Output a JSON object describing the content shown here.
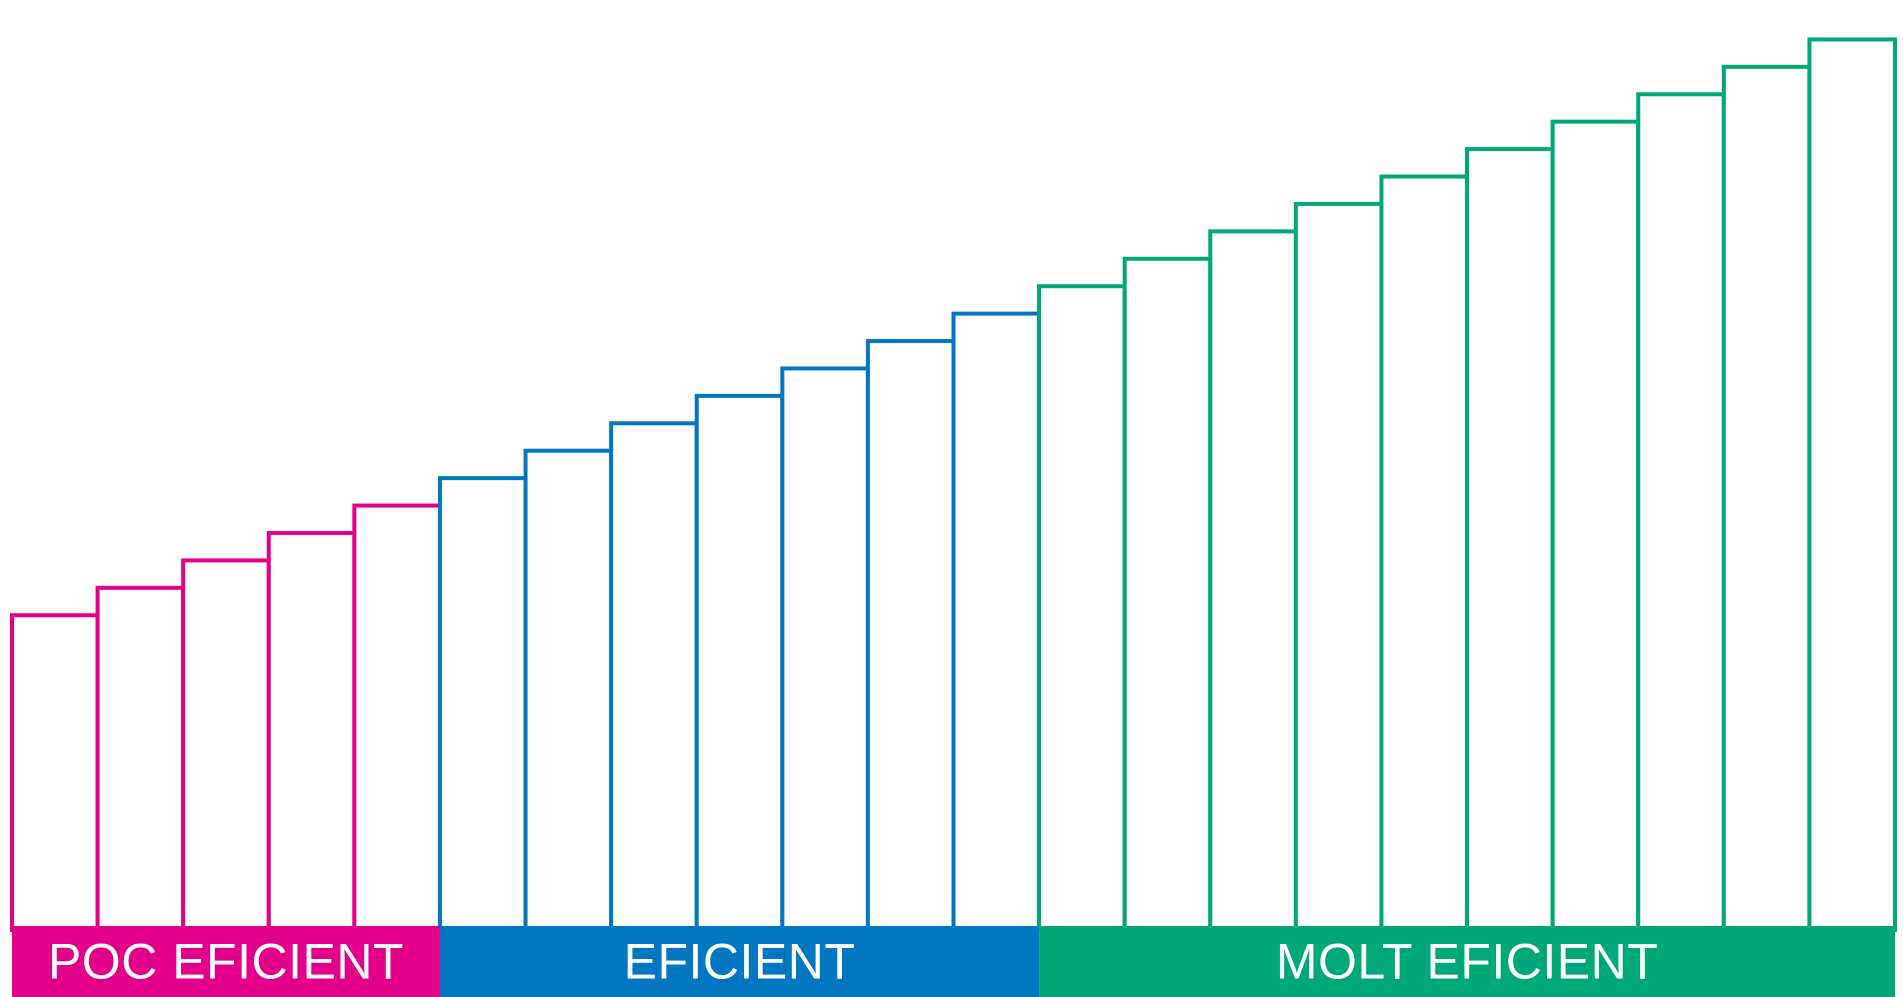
{
  "chart_data": {
    "type": "bar",
    "style": "outlined-step-bars",
    "title": "",
    "xlabel": "",
    "ylabel": "",
    "bar_count": 22,
    "values": [
      0.34,
      0.37,
      0.4,
      0.43,
      0.46,
      0.49,
      0.52,
      0.55,
      0.58,
      0.61,
      0.64,
      0.67,
      0.7,
      0.73,
      0.76,
      0.79,
      0.82,
      0.85,
      0.88,
      0.91,
      0.94,
      0.97
    ],
    "ylim": [
      0,
      1
    ],
    "grid": false,
    "groups": [
      {
        "label": "POC EFICIENT",
        "start": 0,
        "end": 4,
        "color": "#E2008A"
      },
      {
        "label": "EFICIENT",
        "start": 5,
        "end": 11,
        "color": "#0077C0"
      },
      {
        "label": "MOLT EFICIENT",
        "start": 12,
        "end": 21,
        "color": "#00A77A"
      }
    ]
  },
  "band_labels": {
    "low": "POC EFICIENT",
    "mid": "EFICIENT",
    "high": "MOLT EFICIENT"
  }
}
